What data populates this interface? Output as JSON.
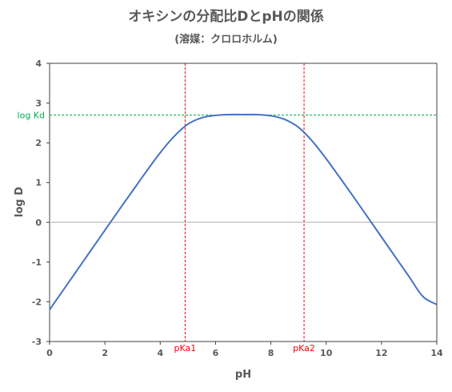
{
  "chart_data": {
    "type": "line",
    "title": "オキシンの分配比DとpHの関係",
    "subtitle": "(溶媒：クロロホルム)",
    "xlabel": "pH",
    "ylabel": "log D",
    "xlim": [
      0,
      14
    ],
    "ylim": [
      -3,
      4
    ],
    "xticks": [
      0,
      2,
      4,
      6,
      8,
      10,
      12,
      14
    ],
    "yticks": [
      -3,
      -2,
      -1,
      0,
      1,
      2,
      3,
      4
    ],
    "grid": false,
    "series": [
      {
        "color": "#4472C4",
        "x": [
          0,
          0.5,
          1,
          1.5,
          2,
          2.5,
          3,
          3.5,
          4,
          4.5,
          5,
          5.5,
          6,
          6.5,
          7,
          7.5,
          8,
          8.5,
          9,
          9.5,
          10,
          10.5,
          11,
          11.5,
          12,
          12.5,
          13,
          13.5,
          14
        ],
        "y": [
          -2.2,
          -1.7,
          -1.2,
          -0.7,
          -0.2,
          0.3,
          0.79,
          1.28,
          1.75,
          2.16,
          2.47,
          2.63,
          2.69,
          2.71,
          2.71,
          2.71,
          2.68,
          2.59,
          2.39,
          2.04,
          1.6,
          1.12,
          0.63,
          0.13,
          -0.37,
          -0.87,
          -1.37,
          -1.87,
          -2.07
        ]
      }
    ],
    "annotations": {
      "kd": {
        "label": "log Kd",
        "y": 2.7,
        "color": "#00B050"
      },
      "pka1": {
        "label": "pKa1",
        "x": 4.9,
        "color": "#FF0000"
      },
      "pka2": {
        "label": "pKa2",
        "x": 9.2,
        "color": "#FF0000"
      }
    }
  }
}
